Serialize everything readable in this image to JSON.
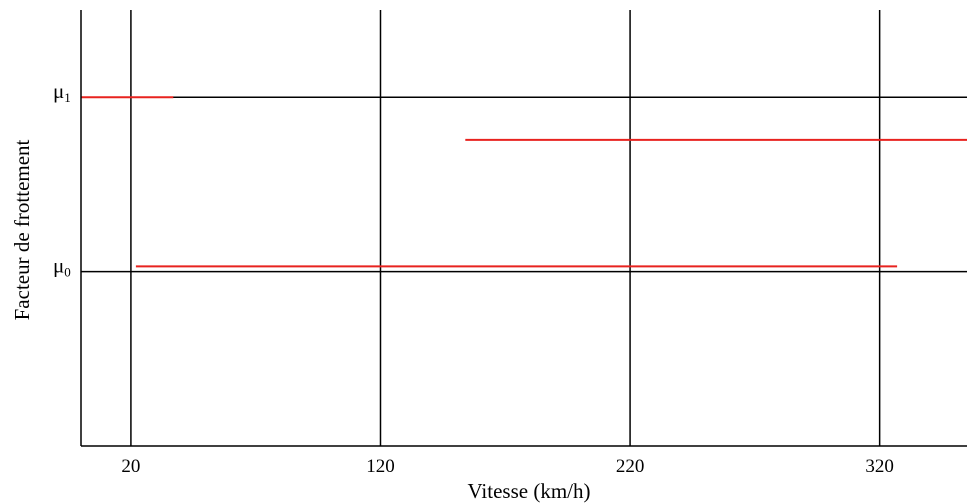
{
  "chart_data": {
    "type": "line",
    "title": "",
    "xlabel": "Vitesse (km/h)",
    "ylabel": "Facteur de frottement",
    "xlim": [
      0,
      355
    ],
    "x_ticks": [
      20,
      120,
      220,
      320
    ],
    "x_tick_labels": [
      "20",
      "120",
      "220",
      "320"
    ],
    "y_ticks": [
      {
        "label_main": "μ",
        "label_sub": "1",
        "value": 1.0
      },
      {
        "label_main": "μ",
        "label_sub": "0",
        "value": 0.0
      }
    ],
    "ylim": [
      -1.0,
      1.5
    ],
    "grid": true,
    "series_color": "#e8231f",
    "series": [
      {
        "x": [
          0,
          37
        ],
        "y": [
          1.0,
          1.0
        ]
      },
      {
        "x": [
          154,
          355
        ],
        "y": [
          0.755,
          0.755
        ]
      },
      {
        "x": [
          22,
          327
        ],
        "y": [
          0.03,
          0.03
        ]
      }
    ]
  }
}
